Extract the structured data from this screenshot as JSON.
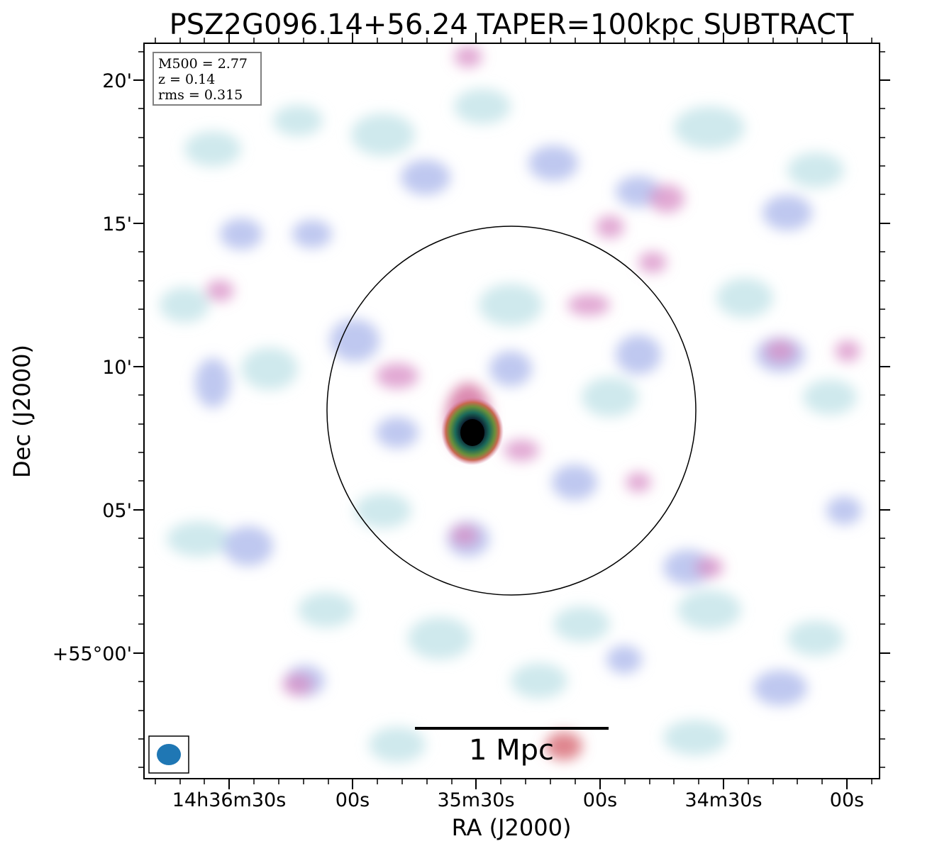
{
  "title": "PSZ2G096.14+56.24 TAPER=100kpc SUBTRACT",
  "axes": {
    "xlabel": "RA (J2000)",
    "ylabel": "Dec (J2000)",
    "x_ticks": [
      "14h36m30s",
      "00s",
      "35m30s",
      "00s",
      "34m30s",
      "00s"
    ],
    "y_ticks": [
      "20'",
      "15'",
      "10'",
      "05'",
      "+55°00'"
    ]
  },
  "info_box": {
    "m500": "M500 = 2.77",
    "z": "z = 0.14",
    "rms": "rms = 0.315"
  },
  "scale_bar": {
    "label": "1 Mpc"
  },
  "colors": {
    "frame": "#000000",
    "beam": "#1f77b4",
    "source_core": "#000000"
  }
}
